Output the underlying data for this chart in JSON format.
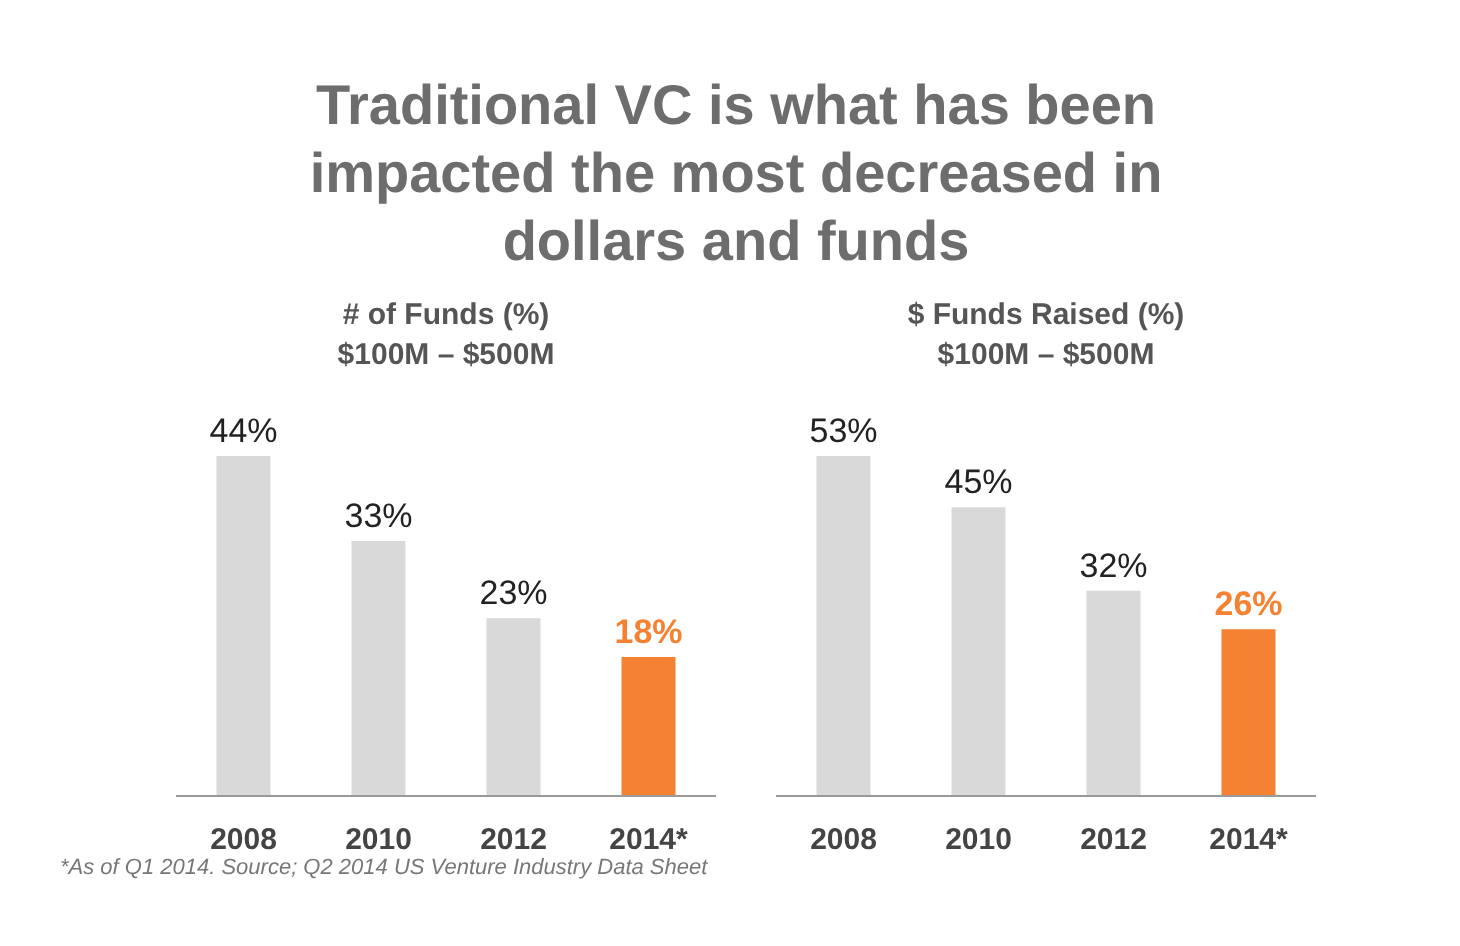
{
  "chart_data": [
    {
      "type": "bar",
      "title": "Traditional VC is what has been impacted the most decreased in dollars and funds",
      "subtitle": "# of Funds (%)\n$100M – $500M",
      "categories": [
        "2008",
        "2010",
        "2012",
        "2014*"
      ],
      "values": [
        44,
        33,
        23,
        18
      ],
      "value_labels": [
        "44%",
        "33%",
        "23%",
        "18%"
      ],
      "colors": [
        "#d9d9d9",
        "#d9d9d9",
        "#d9d9d9",
        "#f58232"
      ]
    },
    {
      "type": "bar",
      "subtitle": "$ Funds Raised (%)\n$100M – $500M",
      "categories": [
        "2008",
        "2010",
        "2012",
        "2014*"
      ],
      "values": [
        53,
        45,
        32,
        26
      ],
      "value_labels": [
        "53%",
        "45%",
        "32%",
        "26%"
      ],
      "colors": [
        "#d9d9d9",
        "#d9d9d9",
        "#d9d9d9",
        "#f58232"
      ],
      "annotations": [
        "*As of Q1 2014. Source; Q2 2014 US Venture Industry Data Sheet"
      ]
    }
  ]
}
